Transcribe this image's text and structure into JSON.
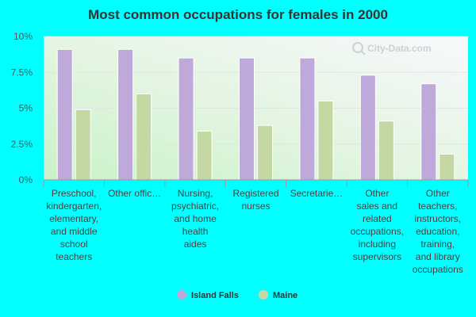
{
  "chart_data": {
    "type": "bar",
    "title": "Most common occupations for females in 2000",
    "categories": [
      [
        "Preschool,",
        "kindergarten,",
        "elementary,",
        "and middle",
        "school",
        "teachers"
      ],
      [
        "Other offic…"
      ],
      [
        "Nursing,",
        "psychiatric,",
        "and home",
        "health",
        "aides"
      ],
      [
        "Registered",
        "nurses"
      ],
      [
        "Secretarie…"
      ],
      [
        "Other",
        "sales and",
        "related",
        "occupations,",
        "including",
        "supervisors"
      ],
      [
        "Other",
        "teachers,",
        "instructors,",
        "education,",
        "training,",
        "and library",
        "occupations"
      ]
    ],
    "series": [
      {
        "name": "Island Falls",
        "color": "#BFA8DA",
        "values": [
          9.1,
          9.1,
          8.5,
          8.5,
          8.5,
          7.3,
          6.7
        ]
      },
      {
        "name": "Maine",
        "color": "#C4D8A4",
        "values": [
          4.9,
          6.0,
          3.4,
          3.8,
          5.5,
          4.1,
          1.8
        ]
      }
    ],
    "ylim": [
      0,
      10
    ],
    "yticks": [
      0,
      2.5,
      5,
      7.5,
      10
    ],
    "ytick_labels": [
      "0%",
      "2.5%",
      "5%",
      "7.5%",
      "10%"
    ],
    "xlabel": "",
    "ylabel": "",
    "legend": "bottom-center",
    "grid": true
  },
  "watermark": "City-Data.com"
}
